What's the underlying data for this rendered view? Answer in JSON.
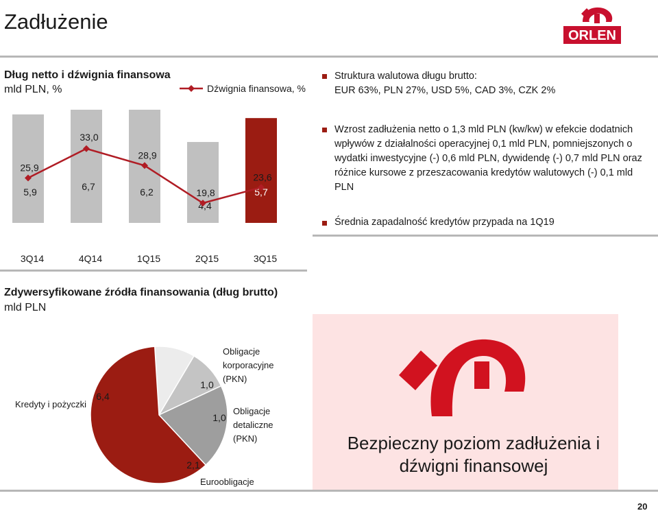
{
  "page": {
    "title": "Zadłużenie",
    "number": "20"
  },
  "logo": {
    "text": "ORLEN",
    "color": "#c8102e"
  },
  "left_header": {
    "line1": "Dług netto i dźwignia finansowa",
    "line2": "mld PLN, %"
  },
  "legend": {
    "label": "Dźwignia finansowa, %"
  },
  "right_top": {
    "line1": "Struktura walutowa długu brutto:",
    "line2": "EUR 63%, PLN 27%, USD 5%, CAD 3%, CZK 2%"
  },
  "bullets": [
    "Wzrost zadłużenia netto o 1,3 mld PLN (kw/kw) w efekcie dodatnich wpływów z działalności operacyjnej 0,1 mld PLN, pomniejszonych o wydatki inwestycyjne (-) 0,6 mld PLN, dywidendę (-) 0,7 mld PLN oraz różnice kursowe z przeszacowania kredytów walutowych (-) 0,1 mld PLN",
    "Średnia zapadalność kredytów przypada na 1Q19"
  ],
  "pie_header": {
    "line1": "Zdywersyfikowane źródła finansowania (dług brutto)",
    "line2": "mld PLN"
  },
  "conclusion": {
    "line1": "Bezpieczny poziom zadłużenia i",
    "line2": "dźwigni finansowej"
  },
  "chart_data": [
    {
      "type": "bar",
      "categories": [
        "3Q14",
        "4Q14",
        "1Q15",
        "2Q15",
        "3Q15"
      ],
      "series": [
        {
          "name": "Dług netto, mld PLN",
          "values": [
            5.9,
            6.7,
            6.2,
            4.4,
            5.7
          ],
          "labels": [
            "5,9",
            "6,7",
            "6,2",
            "4,4",
            "5,7"
          ]
        },
        {
          "name": "Dźwignia finansowa, %",
          "type": "line",
          "values": [
            25.9,
            33.0,
            28.9,
            19.8,
            23.6
          ],
          "labels": [
            "25,9",
            "33,0",
            "28,9",
            "19,8",
            "23,6"
          ]
        }
      ],
      "bar_colors": [
        "#c0c0c0",
        "#c0c0c0",
        "#c0c0c0",
        "#c0c0c0",
        "#9b1c12"
      ],
      "line_color": "#b01c24",
      "ylim_bar": [
        0,
        8
      ],
      "ylim_line": [
        0,
        40
      ]
    },
    {
      "type": "pie",
      "slices": [
        {
          "name": "Kredyty i pożyczki",
          "value": 6.4,
          "label": "6,4",
          "color": "#9b1c12"
        },
        {
          "name": "Euroobligacje",
          "value": 2.1,
          "label": "2,1",
          "color": "#9e9e9e"
        },
        {
          "name": "Obligacje detaliczne (PKN)",
          "value": 1.0,
          "label": "1,0",
          "color": "#c4c4c4"
        },
        {
          "name": "Obligacje korporacyjne (PKN)",
          "value": 1.0,
          "label": "1,0",
          "color": "#ececec"
        }
      ],
      "labels": {
        "loans": "Kredyty i pożyczki",
        "corporate": [
          "Obligacje",
          "korporacyjne",
          "(PKN)"
        ],
        "retail": [
          "Obligacje",
          "detaliczne",
          "(PKN)"
        ],
        "euro": "Euroobligacje"
      }
    }
  ]
}
